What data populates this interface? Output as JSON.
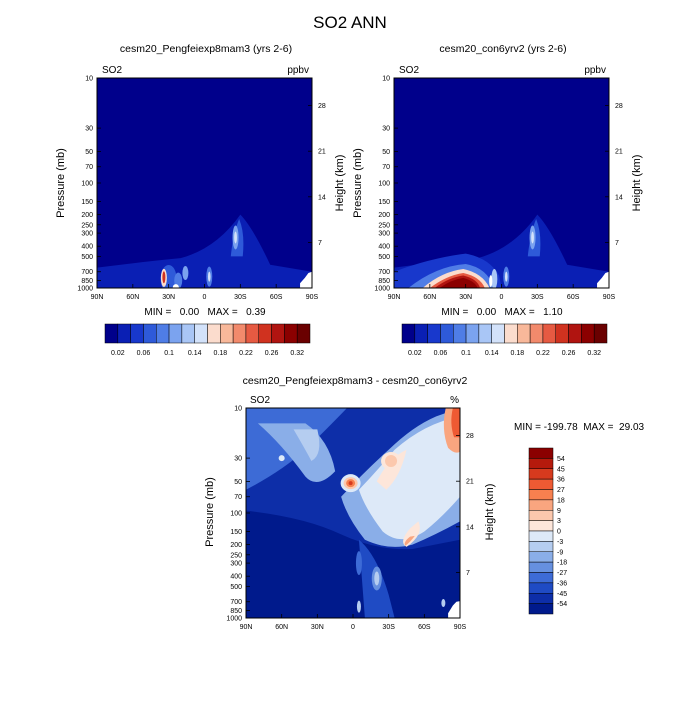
{
  "figure_title": "SO2 ANN",
  "chart_data": [
    {
      "type": "heatmap",
      "title": "cesm20_Pengfeiexp8mam3 (yrs 2-6)",
      "variable": "SO2",
      "units": "ppbv",
      "xlabel": "",
      "ylabel": "Pressure (mb)",
      "y2label": "Height (km)",
      "x_ticks": [
        "90N",
        "60N",
        "30N",
        "0",
        "30S",
        "60S",
        "90S"
      ],
      "y_ticks": [
        10,
        30,
        50,
        70,
        100,
        150,
        200,
        250,
        300,
        400,
        500,
        700,
        850,
        1000
      ],
      "y2_ticks": [
        28,
        21,
        14,
        7
      ],
      "ylim": [
        1000,
        10
      ],
      "y_scale": "log",
      "stats": "MIN =   0.00   MAX =   0.39",
      "min": 0.0,
      "max": 0.39,
      "colorbar_labels": [
        "0.02",
        "0.06",
        "0.1",
        "0.14",
        "0.18",
        "0.22",
        "0.26",
        "0.32"
      ],
      "colorbar_levels": [
        0.02,
        0.04,
        0.06,
        0.08,
        0.1,
        0.12,
        0.14,
        0.16,
        0.18,
        0.2,
        0.22,
        0.24,
        0.26,
        0.28,
        0.32
      ],
      "colors": [
        "#00008b",
        "#0a1fb4",
        "#1838cc",
        "#2e5ad9",
        "#4f7de6",
        "#7ba3ef",
        "#a9c6f6",
        "#d3e2fa",
        "#fbdccd",
        "#f8b89a",
        "#f28a6c",
        "#e65a42",
        "#d0321f",
        "#b01410",
        "#8b0000",
        "#6a0000"
      ]
    },
    {
      "type": "heatmap",
      "title": "cesm20_con6yrv2 (yrs 2-6)",
      "variable": "SO2",
      "units": "ppbv",
      "xlabel": "",
      "ylabel": "Pressure (mb)",
      "y2label": "Height (km)",
      "x_ticks": [
        "90N",
        "60N",
        "30N",
        "0",
        "30S",
        "60S",
        "90S"
      ],
      "y_ticks": [
        10,
        30,
        50,
        70,
        100,
        150,
        200,
        250,
        300,
        400,
        500,
        700,
        850,
        1000
      ],
      "y2_ticks": [
        28,
        21,
        14,
        7
      ],
      "ylim": [
        1000,
        10
      ],
      "y_scale": "log",
      "stats": "MIN =   0.00   MAX =   1.10",
      "min": 0.0,
      "max": 1.1,
      "colorbar_labels": [
        "0.02",
        "0.06",
        "0.1",
        "0.14",
        "0.18",
        "0.22",
        "0.26",
        "0.32"
      ],
      "colors": [
        "#00008b",
        "#0a1fb4",
        "#1838cc",
        "#2e5ad9",
        "#4f7de6",
        "#7ba3ef",
        "#a9c6f6",
        "#d3e2fa",
        "#fbdccd",
        "#f8b89a",
        "#f28a6c",
        "#e65a42",
        "#d0321f",
        "#b01410",
        "#8b0000",
        "#6a0000"
      ]
    },
    {
      "type": "heatmap",
      "title": "cesm20_Pengfeiexp8mam3 - cesm20_con6yrv2",
      "variable": "SO2",
      "units": "%",
      "xlabel": "",
      "ylabel": "Pressure (mb)",
      "y2label": "Height (km)",
      "x_ticks": [
        "90N",
        "60N",
        "30N",
        "0",
        "30S",
        "60S",
        "90S"
      ],
      "y_ticks": [
        10,
        30,
        50,
        70,
        100,
        150,
        200,
        250,
        300,
        400,
        500,
        700,
        850,
        1000
      ],
      "y2_ticks": [
        28,
        21,
        14,
        7
      ],
      "ylim": [
        1000,
        10
      ],
      "y_scale": "log",
      "stats": "MIN = -199.78  MAX =  29.03",
      "min": -199.78,
      "max": 29.03,
      "colorbar_labels": [
        "54",
        "45",
        "36",
        "27",
        "18",
        "9",
        "3",
        "0",
        "-3",
        "-9",
        "-18",
        "-27",
        "-36",
        "-45",
        "-54"
      ],
      "colors": [
        "#8b0000",
        "#b51a0c",
        "#d63a1e",
        "#ee5a33",
        "#f7804f",
        "#f9a57f",
        "#fcc8ad",
        "#fde6da",
        "#dde9f8",
        "#b5cdf0",
        "#8aaee8",
        "#6690df",
        "#3d6bd6",
        "#1f4bc4",
        "#0d2ea8",
        "#001a8c"
      ]
    }
  ]
}
